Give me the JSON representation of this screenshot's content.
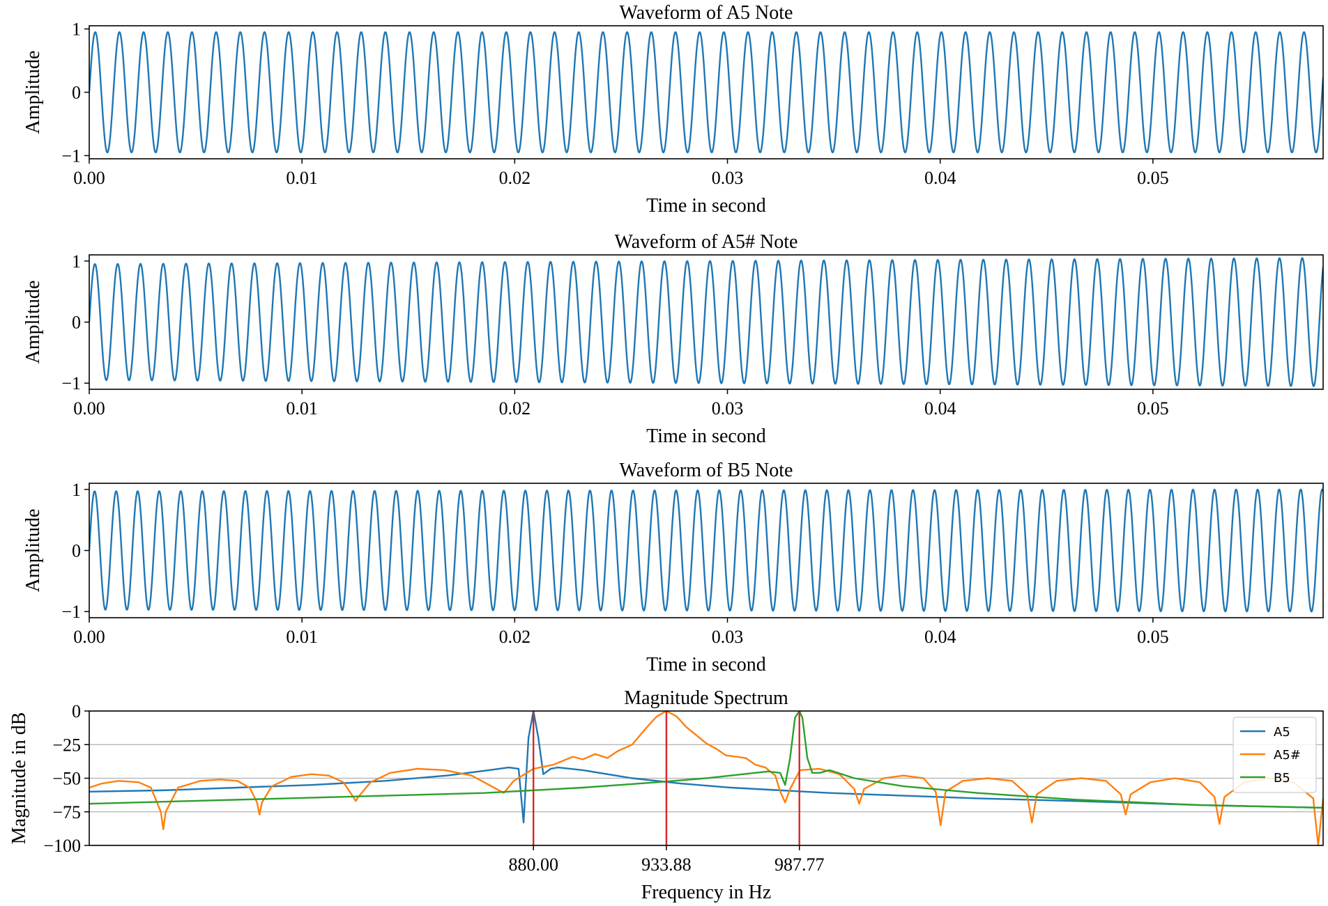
{
  "chart_data": [
    {
      "type": "line",
      "title": "Waveform of A5 Note",
      "xlabel": "Time in second",
      "ylabel": "Amplitude",
      "xlim": [
        0,
        0.058
      ],
      "ylim": [
        -1.05,
        1.05
      ],
      "xticks": [
        0,
        0.01,
        0.02,
        0.03,
        0.04,
        0.05
      ],
      "xtick_labels": [
        "0.00",
        "0.01",
        "0.02",
        "0.03",
        "0.04",
        "0.05"
      ],
      "yticks": [
        1,
        0,
        -1
      ],
      "ytick_labels": [
        "1",
        "0",
        "−1"
      ],
      "series": [
        {
          "name": "A5",
          "frequency_hz": 880,
          "amplitude": 0.95,
          "amplitude_end": 0.95,
          "color": "#1f77b4"
        }
      ]
    },
    {
      "type": "line",
      "title": "Waveform of A5# Note",
      "xlabel": "Time in second",
      "ylabel": "Amplitude",
      "xlim": [
        0,
        0.058
      ],
      "ylim": [
        -1.1,
        1.1
      ],
      "xticks": [
        0,
        0.01,
        0.02,
        0.03,
        0.04,
        0.05
      ],
      "xtick_labels": [
        "0.00",
        "0.01",
        "0.02",
        "0.03",
        "0.04",
        "0.05"
      ],
      "yticks": [
        1,
        0,
        -1
      ],
      "ytick_labels": [
        "1",
        "0",
        "−1"
      ],
      "series": [
        {
          "name": "A5#",
          "frequency_hz": 933.88,
          "amplitude": 0.95,
          "amplitude_end": 1.05,
          "color": "#1f77b4"
        }
      ]
    },
    {
      "type": "line",
      "title": "Waveform of B5 Note",
      "xlabel": "Time in second",
      "ylabel": "Amplitude",
      "xlim": [
        0,
        0.058
      ],
      "ylim": [
        -1.1,
        1.1
      ],
      "xticks": [
        0,
        0.01,
        0.02,
        0.03,
        0.04,
        0.05
      ],
      "xtick_labels": [
        "0.00",
        "0.01",
        "0.02",
        "0.03",
        "0.04",
        "0.05"
      ],
      "yticks": [
        1,
        0,
        -1
      ],
      "ytick_labels": [
        "1",
        "0",
        "−1"
      ],
      "series": [
        {
          "name": "B5",
          "frequency_hz": 987.77,
          "amplitude": 0.97,
          "amplitude_end": 1.0,
          "color": "#1f77b4"
        }
      ]
    },
    {
      "type": "line",
      "title": "Magnitude Spectrum",
      "xlabel": "Frequency in Hz",
      "ylabel": "Magnitude in dB",
      "xlim": [
        700,
        1200
      ],
      "ylim": [
        -100,
        0
      ],
      "yticks": [
        0,
        -25,
        -50,
        -75,
        -100
      ],
      "ytick_labels": [
        "0",
        "−25",
        "−50",
        "−75",
        "−100"
      ],
      "xticks": [
        880,
        933.88,
        987.77
      ],
      "xtick_labels": [
        "880.00",
        "933.88",
        "987.77"
      ],
      "grid": "horizontal",
      "legend_position": "top-right",
      "markers": [
        {
          "x": 880,
          "color": "#d62728"
        },
        {
          "x": 933.88,
          "color": "#d62728"
        },
        {
          "x": 987.77,
          "color": "#d62728"
        }
      ],
      "series": [
        {
          "name": "A5",
          "color": "#1f77b4",
          "points": [
            [
              700,
              -60
            ],
            [
              730,
              -59
            ],
            [
              760,
              -57
            ],
            [
              790,
              -55
            ],
            [
              820,
              -52
            ],
            [
              845,
              -48
            ],
            [
              862,
              -44
            ],
            [
              870,
              -42
            ],
            [
              874,
              -43
            ],
            [
              876,
              -83
            ],
            [
              878,
              -20
            ],
            [
              880,
              0
            ],
            [
              882,
              -20
            ],
            [
              884,
              -47
            ],
            [
              887,
              -43
            ],
            [
              890,
              -42
            ],
            [
              900,
              -44
            ],
            [
              920,
              -50
            ],
            [
              940,
              -54
            ],
            [
              960,
              -57
            ],
            [
              980,
              -59
            ],
            [
              1000,
              -61
            ],
            [
              1030,
              -63
            ],
            [
              1060,
              -65
            ],
            [
              1100,
              -67
            ],
            [
              1150,
              -70
            ],
            [
              1200,
              -72
            ]
          ]
        },
        {
          "name": "A5#",
          "color": "#ff7f0e",
          "points": [
            [
              700,
              -57
            ],
            [
              705,
              -54
            ],
            [
              712,
              -52
            ],
            [
              720,
              -53
            ],
            [
              725,
              -57
            ],
            [
              729,
              -75
            ],
            [
              730,
              -88
            ],
            [
              731,
              -75
            ],
            [
              736,
              -57
            ],
            [
              745,
              -52
            ],
            [
              753,
              -51
            ],
            [
              760,
              -52
            ],
            [
              765,
              -57
            ],
            [
              768,
              -68
            ],
            [
              769,
              -77
            ],
            [
              770,
              -68
            ],
            [
              774,
              -56
            ],
            [
              782,
              -49
            ],
            [
              790,
              -47
            ],
            [
              797,
              -48
            ],
            [
              803,
              -53
            ],
            [
              807,
              -64
            ],
            [
              808,
              -67
            ],
            [
              809,
              -64
            ],
            [
              814,
              -53
            ],
            [
              822,
              -46
            ],
            [
              833,
              -43
            ],
            [
              844,
              -44
            ],
            [
              855,
              -48
            ],
            [
              865,
              -58
            ],
            [
              868,
              -61
            ],
            [
              872,
              -52
            ],
            [
              880,
              -43
            ],
            [
              888,
              -40
            ],
            [
              896,
              -34
            ],
            [
              900,
              -36
            ],
            [
              905,
              -32
            ],
            [
              910,
              -35
            ],
            [
              914,
              -30
            ],
            [
              920,
              -25
            ],
            [
              926,
              -12
            ],
            [
              930,
              -4
            ],
            [
              933.88,
              0
            ],
            [
              938,
              -4
            ],
            [
              942,
              -12
            ],
            [
              946,
              -18
            ],
            [
              950,
              -24
            ],
            [
              954,
              -28
            ],
            [
              958,
              -33
            ],
            [
              962,
              -34
            ],
            [
              966,
              -35
            ],
            [
              970,
              -40
            ],
            [
              974,
              -42
            ],
            [
              978,
              -48
            ],
            [
              980,
              -60
            ],
            [
              982,
              -68
            ],
            [
              984,
              -58
            ],
            [
              988,
              -44
            ],
            [
              996,
              -43
            ],
            [
              1004,
              -47
            ],
            [
              1010,
              -58
            ],
            [
              1012,
              -69
            ],
            [
              1014,
              -58
            ],
            [
              1022,
              -50
            ],
            [
              1030,
              -48
            ],
            [
              1038,
              -50
            ],
            [
              1043,
              -60
            ],
            [
              1045,
              -85
            ],
            [
              1047,
              -60
            ],
            [
              1054,
              -52
            ],
            [
              1064,
              -50
            ],
            [
              1074,
              -52
            ],
            [
              1080,
              -62
            ],
            [
              1082,
              -83
            ],
            [
              1084,
              -62
            ],
            [
              1092,
              -52
            ],
            [
              1102,
              -50
            ],
            [
              1112,
              -52
            ],
            [
              1118,
              -62
            ],
            [
              1120,
              -77
            ],
            [
              1122,
              -62
            ],
            [
              1130,
              -53
            ],
            [
              1140,
              -50
            ],
            [
              1150,
              -53
            ],
            [
              1156,
              -64
            ],
            [
              1158,
              -84
            ],
            [
              1160,
              -64
            ],
            [
              1168,
              -53
            ],
            [
              1178,
              -50
            ],
            [
              1188,
              -53
            ],
            [
              1196,
              -65
            ],
            [
              1198,
              -100
            ],
            [
              1200,
              -65
            ]
          ]
        },
        {
          "name": "B5",
          "color": "#2ca02c",
          "points": [
            [
              700,
              -69
            ],
            [
              740,
              -67
            ],
            [
              780,
              -65
            ],
            [
              820,
              -63
            ],
            [
              860,
              -61
            ],
            [
              900,
              -57
            ],
            [
              930,
              -53
            ],
            [
              950,
              -50
            ],
            [
              965,
              -47
            ],
            [
              975,
              -45
            ],
            [
              980,
              -46
            ],
            [
              982,
              -55
            ],
            [
              984,
              -35
            ],
            [
              986,
              -5
            ],
            [
              987.77,
              0
            ],
            [
              989,
              -5
            ],
            [
              991,
              -35
            ],
            [
              993,
              -46
            ],
            [
              996,
              -46
            ],
            [
              1000,
              -44
            ],
            [
              1010,
              -50
            ],
            [
              1030,
              -56
            ],
            [
              1060,
              -61
            ],
            [
              1100,
              -66
            ],
            [
              1150,
              -70
            ],
            [
              1200,
              -72
            ]
          ]
        }
      ]
    }
  ]
}
